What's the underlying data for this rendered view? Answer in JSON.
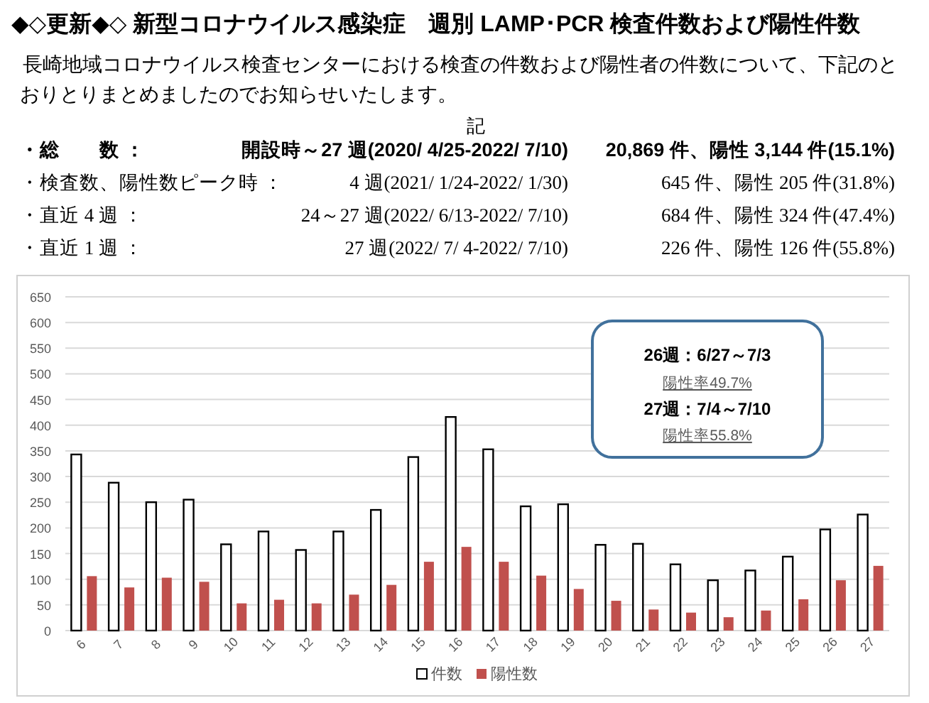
{
  "chart_data": {
    "type": "bar",
    "title": "◆◇更新◆◇ 新型コロナウイルス感染症　週別 LAMP･PCR 検査件数および陽性件数",
    "annotations": [
      "長崎地域コロナウイルス検査センターにおける検査の件数および陽性者の件数について、下記のとおりとりまとめましたのでお知らせいたします。",
      "記",
      "・総　　数 ：",
      "開設時～27 週(2020/ 4/25-2022/ 7/10)",
      "20,869 件、陽性 3,144 件(15.1%)",
      "・検査数、陽性数ピーク時 ：",
      "4 週(2021/ 1/24-2022/ 1/30)",
      "645 件、陽性 205 件(31.8%)",
      "・直近 4 週 ：",
      "24～27 週(2022/ 6/13-2022/ 7/10)",
      "684 件、陽性 324 件(47.4%)",
      "・直近 1 週 ：",
      "27 週(2022/ 7/ 4-2022/ 7/10)",
      "226 件、陽性 126 件(55.8%)",
      "26週：6/27～7/3",
      "陽性率49.7%",
      "27週：7/4～7/10",
      "陽性率55.8%"
    ],
    "categories": [
      "6",
      "7",
      "8",
      "9",
      "10",
      "11",
      "12",
      "13",
      "14",
      "15",
      "16",
      "17",
      "18",
      "19",
      "20",
      "21",
      "22",
      "23",
      "24",
      "25",
      "26",
      "27"
    ],
    "series": [
      {
        "name": "件数",
        "color": "#ffffff",
        "values": [
          343,
          288,
          250,
          255,
          168,
          193,
          157,
          193,
          235,
          338,
          416,
          353,
          242,
          246,
          167,
          169,
          129,
          98,
          117,
          144,
          197,
          226
        ]
      },
      {
        "name": "陽性数",
        "color": "#c0504d",
        "values": [
          106,
          84,
          103,
          95,
          53,
          60,
          53,
          70,
          89,
          134,
          163,
          134,
          107,
          81,
          58,
          41,
          35,
          26,
          39,
          61,
          98,
          126
        ]
      }
    ],
    "ylim": [
      0,
      650
    ],
    "yticks": [
      0,
      50,
      100,
      150,
      200,
      250,
      300,
      350,
      400,
      450,
      500,
      550,
      600,
      650
    ],
    "grid": "y",
    "legend": "bottom"
  }
}
